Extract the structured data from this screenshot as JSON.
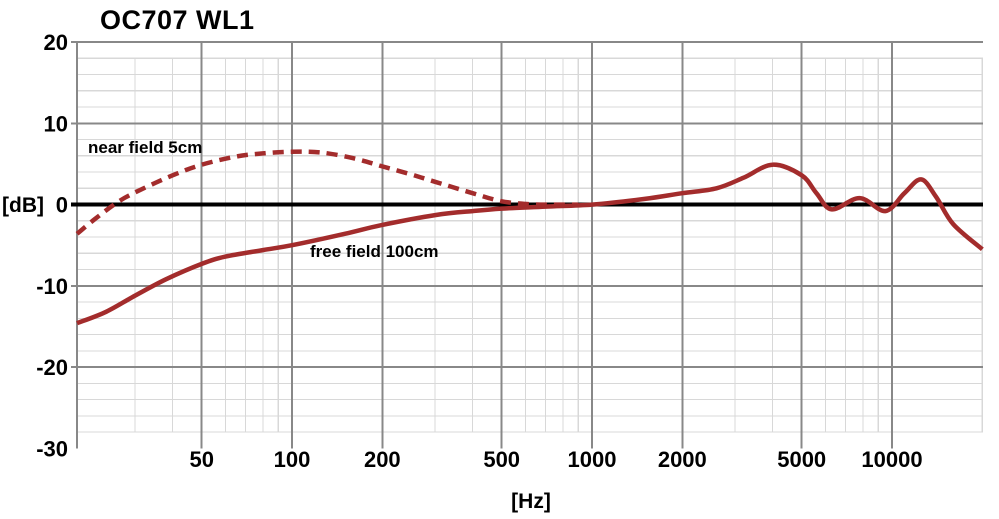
{
  "title": "OC707 WL1",
  "axis": {
    "y_unit": "[dB]",
    "x_unit": "[Hz]",
    "y_ticks": [
      "20",
      "10",
      "0",
      "-10",
      "-20",
      "-30"
    ],
    "x_ticks": [
      "50",
      "100",
      "200",
      "500",
      "1000",
      "2000",
      "5000",
      "10000"
    ]
  },
  "colors": {
    "accent_red": "#A32C2C",
    "grid_major": "#888888",
    "grid_minor": "#d8d8d8",
    "zero_line": "#000000"
  },
  "chart_data": {
    "type": "line",
    "title": "OC707 WL1",
    "xlabel": "[Hz]",
    "ylabel": "[dB]",
    "x_scale": "log",
    "xlim": [
      19.2,
      20000
    ],
    "ylim": [
      -30,
      20
    ],
    "grid": true,
    "y_major_ticks": [
      20,
      10,
      0,
      -10,
      -20,
      -30
    ],
    "y_minor_step_db": 2,
    "x_major_gridlines_hz": [
      50,
      100,
      200,
      500,
      1000,
      2000,
      5000,
      10000
    ],
    "x_minor_gridlines_hz": [
      30,
      40,
      60,
      70,
      80,
      90,
      300,
      400,
      600,
      700,
      800,
      900,
      3000,
      4000,
      6000,
      7000,
      8000,
      9000,
      20000
    ],
    "series": [
      {
        "name": "near field 5cm",
        "style": "dashed",
        "points": [
          [
            19.2,
            -3.6
          ],
          [
            22,
            -1.8
          ],
          [
            26,
            0.2
          ],
          [
            30,
            1.5
          ],
          [
            40,
            3.6
          ],
          [
            50,
            4.9
          ],
          [
            65,
            5.9
          ],
          [
            80,
            6.3
          ],
          [
            100,
            6.5
          ],
          [
            125,
            6.4
          ],
          [
            160,
            5.7
          ],
          [
            200,
            4.7
          ],
          [
            250,
            3.7
          ],
          [
            300,
            2.8
          ],
          [
            400,
            1.4
          ],
          [
            500,
            0.4
          ],
          [
            620,
            0.05
          ],
          [
            750,
            0.0
          ],
          [
            900,
            0.0
          ]
        ]
      },
      {
        "name": "free field 100cm",
        "style": "solid",
        "points": [
          [
            19.2,
            -14.6
          ],
          [
            24,
            -13.2
          ],
          [
            30,
            -11.2
          ],
          [
            38,
            -9.2
          ],
          [
            50,
            -7.3
          ],
          [
            60,
            -6.4
          ],
          [
            80,
            -5.6
          ],
          [
            100,
            -5.0
          ],
          [
            150,
            -3.6
          ],
          [
            200,
            -2.5
          ],
          [
            300,
            -1.3
          ],
          [
            400,
            -0.8
          ],
          [
            500,
            -0.5
          ],
          [
            700,
            -0.25
          ],
          [
            1000,
            0.0
          ],
          [
            1500,
            0.7
          ],
          [
            2000,
            1.4
          ],
          [
            2600,
            2.0
          ],
          [
            3200,
            3.3
          ],
          [
            4000,
            4.9
          ],
          [
            5000,
            3.6
          ],
          [
            5600,
            1.4
          ],
          [
            6300,
            -0.6
          ],
          [
            7800,
            0.8
          ],
          [
            9500,
            -0.8
          ],
          [
            11000,
            1.4
          ],
          [
            12500,
            3.1
          ],
          [
            14000,
            1.0
          ],
          [
            16000,
            -2.4
          ],
          [
            20000,
            -5.5
          ]
        ]
      }
    ]
  }
}
